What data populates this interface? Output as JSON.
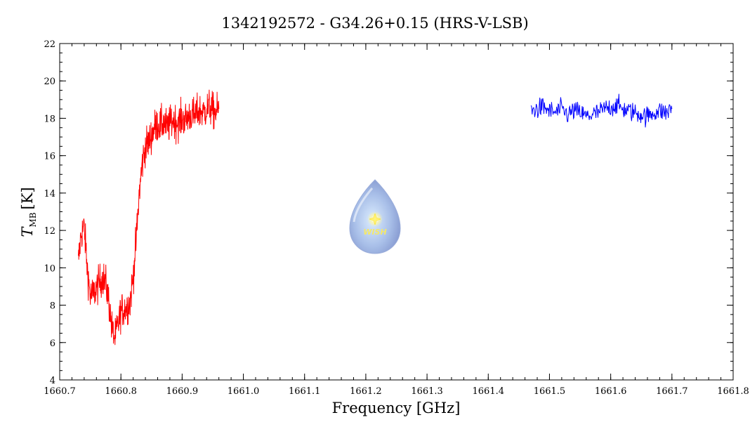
{
  "chart_data": {
    "type": "line",
    "title": "1342192572 - G34.26+0.15 (HRS-V-LSB)",
    "xlabel": "Frequency [GHz]",
    "ylabel": {
      "main": "T",
      "sub": "MB",
      "unit": "[K]"
    },
    "xlim": [
      1660.7,
      1661.8
    ],
    "ylim": [
      4,
      22
    ],
    "xticks": [
      "1660.7",
      "1660.8",
      "1660.9",
      "1661.0",
      "1661.1",
      "1661.2",
      "1661.3",
      "1661.4",
      "1661.5",
      "1661.6",
      "1661.7",
      "1661.8"
    ],
    "yticks": [
      "4",
      "6",
      "8",
      "10",
      "12",
      "14",
      "16",
      "18",
      "20",
      "22"
    ],
    "grid": false,
    "series": [
      {
        "color": "#ff0000",
        "x": [
          1660.73,
          1660.735,
          1660.74,
          1660.745,
          1660.75,
          1660.755,
          1660.76,
          1660.765,
          1660.77,
          1660.775,
          1660.78,
          1660.785,
          1660.79,
          1660.795,
          1660.8,
          1660.805,
          1660.81,
          1660.815,
          1660.82,
          1660.825,
          1660.83,
          1660.835,
          1660.84,
          1660.845,
          1660.85,
          1660.855,
          1660.86,
          1660.865,
          1660.87,
          1660.875,
          1660.88,
          1660.885,
          1660.89,
          1660.895,
          1660.9,
          1660.905,
          1660.91,
          1660.915,
          1660.92,
          1660.925,
          1660.93,
          1660.935,
          1660.94,
          1660.945,
          1660.95,
          1660.955,
          1660.96
        ],
        "y": [
          10.2,
          11.8,
          12.2,
          10.0,
          8.5,
          8.6,
          8.9,
          9.2,
          9.5,
          9.2,
          8.3,
          6.8,
          6.2,
          6.9,
          7.7,
          7.8,
          7.9,
          8.2,
          9.5,
          11.5,
          14.0,
          15.6,
          16.5,
          16.7,
          17.1,
          17.5,
          17.7,
          17.6,
          17.8,
          17.5,
          17.7,
          17.9,
          17.8,
          17.8,
          18.0,
          17.9,
          18.1,
          18.2,
          18.1,
          18.3,
          18.4,
          18.3,
          18.5,
          18.6,
          18.4,
          18.3,
          18.5
        ]
      },
      {
        "color": "#0000ff",
        "x": [
          1661.47,
          1661.48,
          1661.49,
          1661.5,
          1661.51,
          1661.52,
          1661.53,
          1661.54,
          1661.55,
          1661.56,
          1661.57,
          1661.58,
          1661.59,
          1661.6,
          1661.61,
          1661.62,
          1661.63,
          1661.64,
          1661.65,
          1661.66,
          1661.67,
          1661.68,
          1661.69,
          1661.7
        ],
        "y": [
          18.4,
          18.5,
          18.6,
          18.4,
          18.3,
          18.5,
          18.2,
          18.4,
          18.3,
          18.1,
          18.2,
          18.3,
          18.5,
          18.6,
          18.7,
          18.5,
          18.4,
          18.3,
          18.2,
          18.1,
          18.3,
          18.4,
          18.3,
          18.5
        ]
      }
    ]
  },
  "logo": {
    "text": "WISH"
  }
}
